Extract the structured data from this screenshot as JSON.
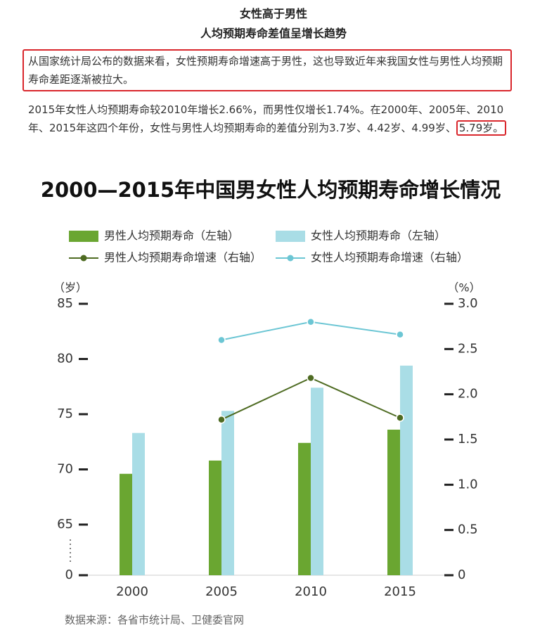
{
  "header": {
    "title": "女性高于男性",
    "subtitle": "人均预期寿命差值呈增长趋势"
  },
  "paragraphs": [
    {
      "text": "从国家统计局公布的数据来看，女性预期寿命增速高于男性，这也导致近年来我国女性与男性人均预期寿命差距逐渐被拉大。"
    },
    {
      "text": "2015年女性人均预期寿命较2010年增长2.66%，而男性仅增长1.74%。在2000年、2005年、2010年、2015年这四个年份，女性与男性人均预期寿命的差值分别为3.7岁、4.42岁、4.99岁、",
      "highlight": "5.79岁。"
    }
  ],
  "chart_data": {
    "type": "bar",
    "title": "2000—2015年中国男女性人均预期寿命增长情况",
    "categories": [
      "2000",
      "2005",
      "2010",
      "2015"
    ],
    "series": [
      {
        "name": "男性人均预期寿命（左轴）",
        "type": "bar",
        "color": "#6aa631",
        "values": [
          69.6,
          70.8,
          72.4,
          73.6
        ]
      },
      {
        "name": "女性人均预期寿命（左轴）",
        "type": "bar",
        "color": "#a9dde6",
        "values": [
          73.3,
          75.3,
          77.4,
          79.4
        ]
      },
      {
        "name": "男性人均预期寿命增速（右轴）",
        "type": "line",
        "axis": "y2",
        "color": "#4e6b22",
        "values": [
          null,
          1.72,
          2.18,
          1.74
        ]
      },
      {
        "name": "女性人均预期寿命增速（右轴）",
        "type": "line",
        "axis": "y2",
        "color": "#6cc6d4",
        "values": [
          null,
          2.6,
          2.8,
          2.66
        ]
      }
    ],
    "ylabel": "（岁）",
    "y2label": "（%）",
    "ylim": [
      0,
      85
    ],
    "y_break": [
      0,
      65
    ],
    "yticks": [
      0,
      65,
      70,
      75,
      80,
      85
    ],
    "y2lim": [
      0,
      3
    ],
    "y2ticks": [
      0,
      0.5,
      {
        "value": 1,
        "label": "1.0"
      },
      1.5,
      {
        "value": 2,
        "label": "2.0"
      },
      2.5,
      {
        "value": 3,
        "label": "3.0"
      }
    ],
    "source": "数据来源：各省市统计局、卫健委官网"
  }
}
